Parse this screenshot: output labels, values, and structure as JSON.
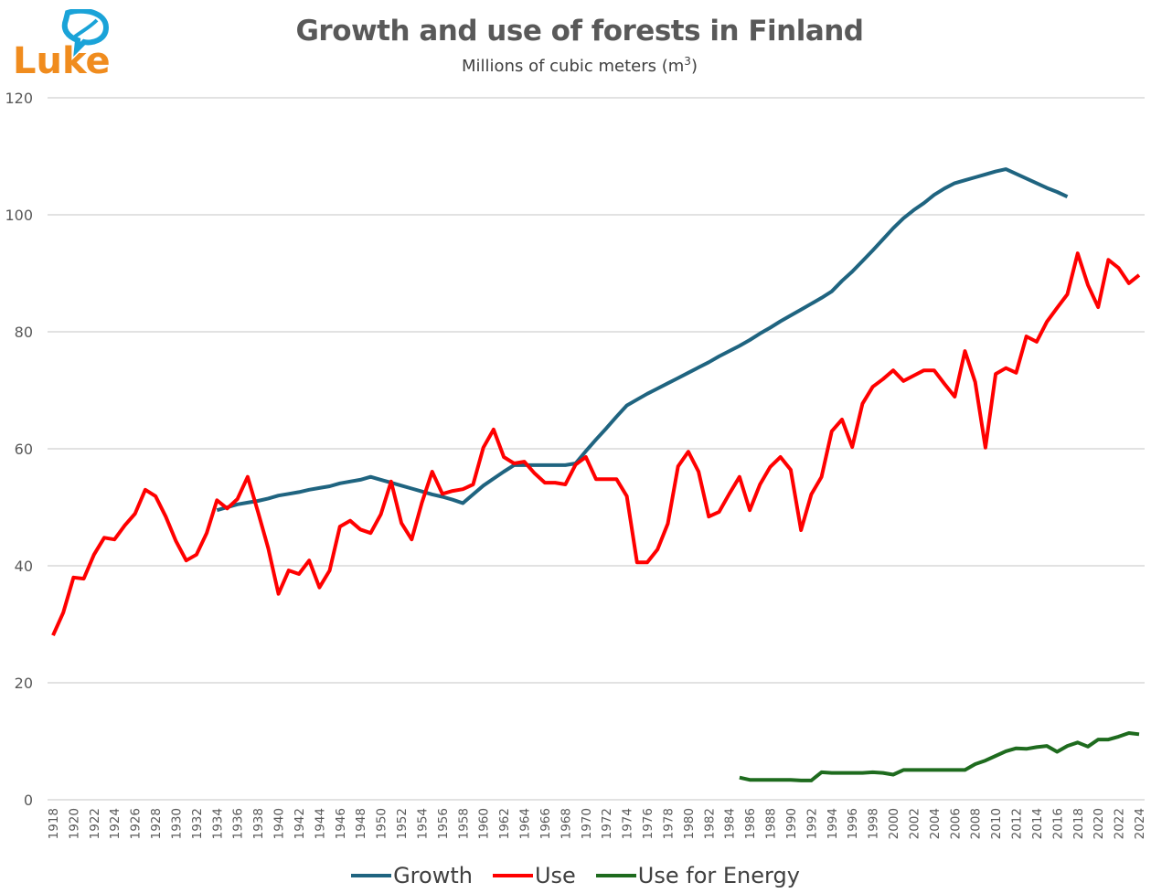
{
  "logo": {
    "text": "Luke",
    "colors": {
      "text": "#F08C1E",
      "leaf": "#1AA3D8"
    }
  },
  "chart_data": {
    "type": "line",
    "title": "Growth and use of forests in Finland",
    "subtitle_prefix": "Millions of cubic meters (m",
    "subtitle_sup": "3",
    "subtitle_suffix": ")",
    "xlabel": "",
    "ylabel": "",
    "ylim": [
      0,
      120
    ],
    "yticks": [
      0,
      20,
      40,
      60,
      80,
      100,
      120
    ],
    "xlim": [
      1918,
      2024
    ],
    "xticks": [
      1918,
      1920,
      1922,
      1924,
      1926,
      1928,
      1930,
      1932,
      1934,
      1936,
      1938,
      1940,
      1942,
      1944,
      1946,
      1948,
      1950,
      1952,
      1954,
      1956,
      1958,
      1960,
      1962,
      1964,
      1966,
      1968,
      1970,
      1972,
      1974,
      1976,
      1978,
      1980,
      1982,
      1984,
      1986,
      1988,
      1990,
      1992,
      1994,
      1996,
      1998,
      2000,
      2002,
      2004,
      2006,
      2008,
      2010,
      2012,
      2014,
      2016,
      2018,
      2020,
      2022,
      2024
    ],
    "grid": true,
    "legend_position": "bottom",
    "series": [
      {
        "name": "Growth",
        "color": "#1F6480",
        "start_year": 1934,
        "values": [
          49.5,
          50.0,
          50.5,
          50.8,
          51.1,
          51.5,
          52.0,
          52.3,
          52.6,
          53.0,
          53.3,
          53.6,
          54.1,
          54.4,
          54.7,
          55.2,
          54.7,
          54.2,
          53.7,
          53.2,
          52.7,
          52.2,
          51.8,
          51.3,
          50.7,
          52.2,
          53.7,
          54.9,
          56.1,
          57.2,
          57.2,
          57.2,
          57.2,
          57.2,
          57.2,
          57.5,
          59.6,
          61.6,
          63.5,
          65.5,
          67.4,
          68.4,
          69.4,
          70.3,
          71.2,
          72.1,
          73.0,
          73.9,
          74.8,
          75.8,
          76.7,
          77.6,
          78.6,
          79.7,
          80.7,
          81.8,
          82.8,
          83.8,
          84.8,
          85.8,
          86.9,
          88.7,
          90.3,
          92.1,
          93.9,
          95.8,
          97.7,
          99.4,
          100.8,
          102.0,
          103.4,
          104.5,
          105.4,
          105.9,
          106.4,
          106.9,
          107.4,
          107.8,
          107.0,
          106.2,
          105.4,
          104.6,
          103.9,
          103.1
        ]
      },
      {
        "name": "Use",
        "color": "#FF0000",
        "start_year": 1918,
        "values": [
          28.1,
          32.0,
          38.0,
          37.8,
          41.9,
          44.8,
          44.5,
          46.9,
          48.9,
          53.0,
          51.9,
          48.4,
          44.2,
          40.9,
          41.9,
          45.6,
          51.2,
          49.8,
          51.4,
          55.2,
          49.2,
          43.0,
          35.2,
          39.2,
          38.6,
          40.9,
          36.3,
          39.2,
          46.7,
          47.7,
          46.2,
          45.6,
          48.8,
          54.4,
          47.3,
          44.5,
          50.8,
          56.1,
          52.3,
          52.8,
          53.1,
          53.9,
          60.2,
          63.3,
          58.6,
          57.5,
          57.8,
          55.8,
          54.2,
          54.2,
          53.9,
          57.3,
          58.6,
          54.8,
          54.8,
          54.8,
          51.9,
          40.6,
          40.6,
          42.8,
          47.2,
          57.0,
          59.5,
          56.1,
          48.4,
          49.2,
          52.3,
          55.2,
          49.5,
          53.9,
          56.9,
          58.6,
          56.4,
          46.1,
          52.2,
          55.2,
          63.0,
          65.0,
          60.3,
          67.7,
          70.6,
          71.9,
          73.4,
          71.6,
          72.5,
          73.4,
          73.4,
          71.1,
          68.9,
          76.7,
          71.4,
          60.2,
          72.8,
          73.8,
          73.0,
          79.2,
          78.3,
          81.7,
          84.1,
          86.4,
          93.4,
          88.0,
          84.2,
          92.3,
          90.9,
          88.3,
          89.7
        ]
      },
      {
        "name": "Use for Energy",
        "color": "#1E6B1E",
        "start_year": 1985,
        "values": [
          3.8,
          3.4,
          3.4,
          3.4,
          3.4,
          3.4,
          3.3,
          3.3,
          4.7,
          4.6,
          4.6,
          4.6,
          4.6,
          4.7,
          4.6,
          4.3,
          5.1,
          5.1,
          5.1,
          5.1,
          5.1,
          5.1,
          5.1,
          6.1,
          6.7,
          7.5,
          8.3,
          8.8,
          8.7,
          9.0,
          9.2,
          8.2,
          9.2,
          9.8,
          9.1,
          10.3,
          10.3,
          10.8,
          11.4,
          11.2
        ]
      }
    ]
  }
}
